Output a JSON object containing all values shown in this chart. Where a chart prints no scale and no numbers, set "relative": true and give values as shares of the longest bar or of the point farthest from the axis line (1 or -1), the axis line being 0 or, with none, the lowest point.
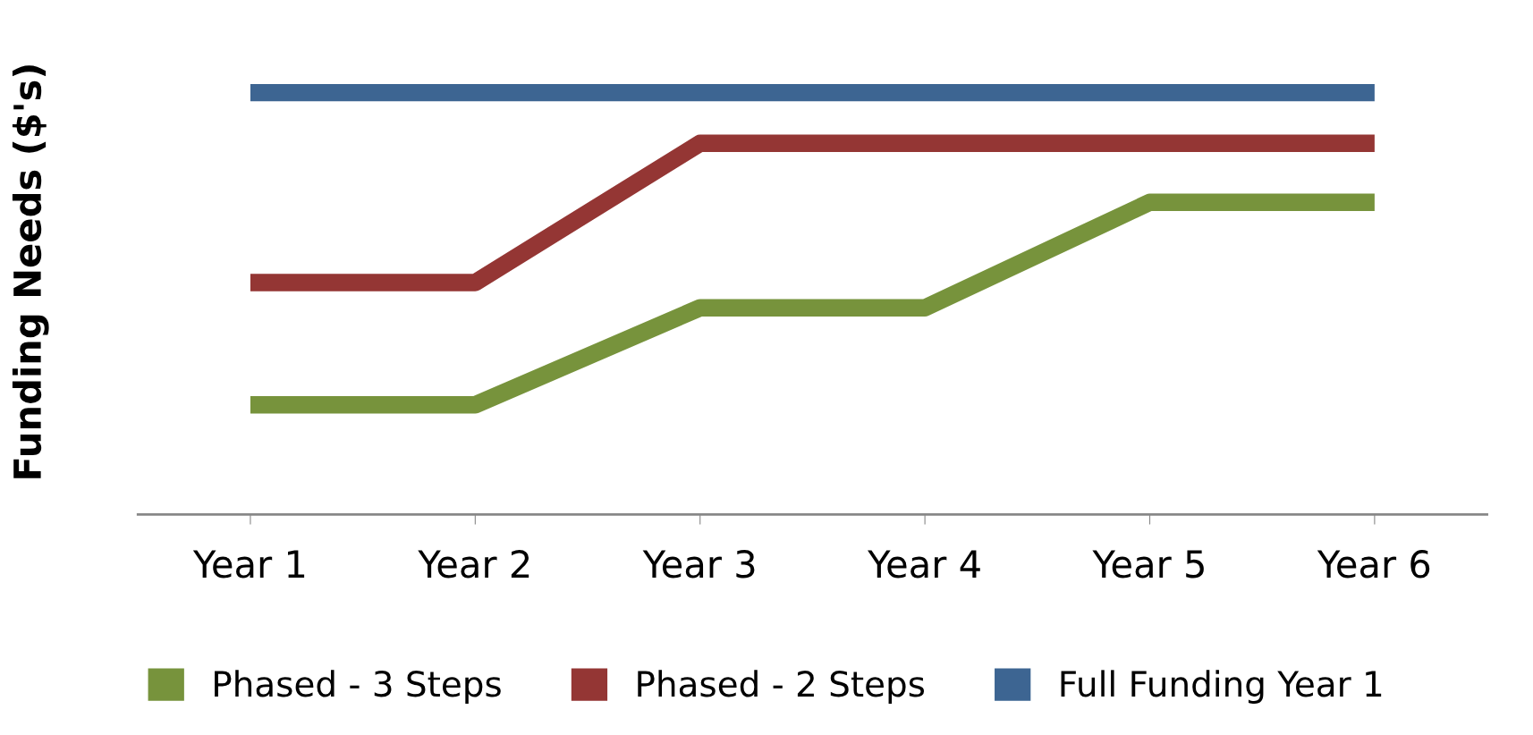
{
  "chart_data": {
    "type": "line",
    "relative": true,
    "ylabel": "Funding Needs ($'s)",
    "categories": [
      "Year 1",
      "Year 2",
      "Year 3",
      "Year 4",
      "Year 5",
      "Year 6"
    ],
    "series": [
      {
        "name": "Phased - 3 Steps",
        "color": "#77933c",
        "values": [
          0.26,
          0.26,
          0.49,
          0.49,
          0.74,
          0.74
        ]
      },
      {
        "name": "Phased - 2 Steps",
        "color": "#943634",
        "values": [
          0.55,
          0.55,
          0.88,
          0.88,
          0.88,
          0.88
        ]
      },
      {
        "name": "Full Funding Year 1",
        "color": "#3d6592",
        "values": [
          1,
          1,
          1,
          1,
          1,
          1
        ]
      }
    ],
    "legend": "bottom",
    "marker": "none",
    "line_style": "solid"
  }
}
